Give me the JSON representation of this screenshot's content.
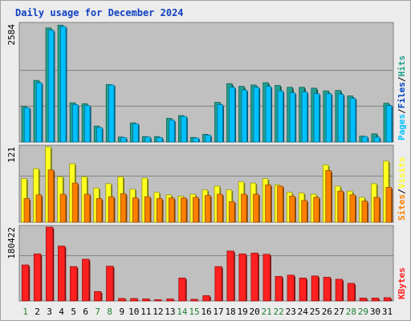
{
  "title": "Daily usage for December 2024",
  "colors": {
    "pages": "#00c0ff",
    "files": "#0040c0",
    "hits": "#20a090",
    "visits": "#ffff20",
    "sites": "#ff8000",
    "kbytes": "#ff2020",
    "weekend_day": "#208030",
    "weekday": "#000000",
    "plot_bg": "#c0c0c0"
  },
  "chart_data": [
    {
      "type": "bar",
      "title": "Daily usage for December 2024",
      "categories": [
        "1",
        "2",
        "3",
        "4",
        "5",
        "6",
        "7",
        "8",
        "9",
        "10",
        "11",
        "12",
        "13",
        "14",
        "15",
        "16",
        "17",
        "18",
        "19",
        "20",
        "21",
        "22",
        "23",
        "24",
        "25",
        "26",
        "27",
        "28",
        "29",
        "30",
        "31"
      ],
      "weekend_days": [
        "1",
        "7",
        "8",
        "14",
        "15",
        "21",
        "22",
        "28",
        "29"
      ],
      "ymax_label": "2584",
      "ylim": [
        0,
        2584
      ],
      "legend": [
        "Pages",
        "/",
        "Files",
        "/",
        "Hits"
      ],
      "series": [
        {
          "name": "Hits",
          "values": [
            780,
            1350,
            2500,
            2560,
            860,
            840,
            350,
            1260,
            110,
            420,
            120,
            120,
            520,
            580,
            100,
            170,
            870,
            1280,
            1220,
            1250,
            1300,
            1240,
            1200,
            1200,
            1180,
            1120,
            1130,
            1010,
            130,
            180,
            850
          ]
        },
        {
          "name": "Pages",
          "values": [
            750,
            1300,
            2450,
            2530,
            820,
            800,
            320,
            1250,
            100,
            400,
            110,
            100,
            480,
            560,
            90,
            150,
            820,
            1200,
            1140,
            1200,
            1220,
            1120,
            1080,
            1100,
            1060,
            1060,
            1050,
            960,
            120,
            110,
            800
          ]
        }
      ]
    },
    {
      "type": "bar",
      "categories": [
        "1",
        "2",
        "3",
        "4",
        "5",
        "6",
        "7",
        "8",
        "9",
        "10",
        "11",
        "12",
        "13",
        "14",
        "15",
        "16",
        "17",
        "18",
        "19",
        "20",
        "21",
        "22",
        "23",
        "24",
        "25",
        "26",
        "27",
        "28",
        "29",
        "30",
        "31"
      ],
      "ymax_label": "121",
      "ylim": [
        0,
        121
      ],
      "legend": [
        "Sites",
        "/",
        "Visits"
      ],
      "series": [
        {
          "name": "Visits",
          "values": [
            70,
            86,
            121,
            73,
            94,
            73,
            55,
            62,
            73,
            53,
            71,
            48,
            44,
            42,
            45,
            52,
            58,
            52,
            65,
            63,
            70,
            60,
            48,
            47,
            45,
            92,
            58,
            50,
            40,
            62,
            98
          ]
        },
        {
          "name": "Sites",
          "values": [
            38,
            44,
            84,
            45,
            63,
            45,
            38,
            41,
            46,
            39,
            41,
            38,
            39,
            39,
            40,
            43,
            45,
            33,
            45,
            45,
            60,
            58,
            42,
            35,
            40,
            83,
            50,
            44,
            34,
            40,
            56
          ]
        }
      ]
    },
    {
      "type": "bar",
      "categories": [
        "1",
        "2",
        "3",
        "4",
        "5",
        "6",
        "7",
        "8",
        "9",
        "10",
        "11",
        "12",
        "13",
        "14",
        "15",
        "16",
        "17",
        "18",
        "19",
        "20",
        "21",
        "22",
        "23",
        "24",
        "25",
        "26",
        "27",
        "28",
        "29",
        "30",
        "31"
      ],
      "ymax_label": "180422",
      "ylim": [
        0,
        180422
      ],
      "legend": [
        "KBytes"
      ],
      "series": [
        {
          "name": "KBytes",
          "values": [
            88000,
            115000,
            180422,
            134000,
            84000,
            102000,
            23000,
            85000,
            6000,
            6000,
            5000,
            3000,
            5000,
            56000,
            4000,
            13000,
            84000,
            122000,
            115000,
            117000,
            114000,
            60000,
            63000,
            56000,
            61000,
            58000,
            53000,
            43000,
            7000,
            7000,
            8000
          ]
        }
      ]
    }
  ]
}
